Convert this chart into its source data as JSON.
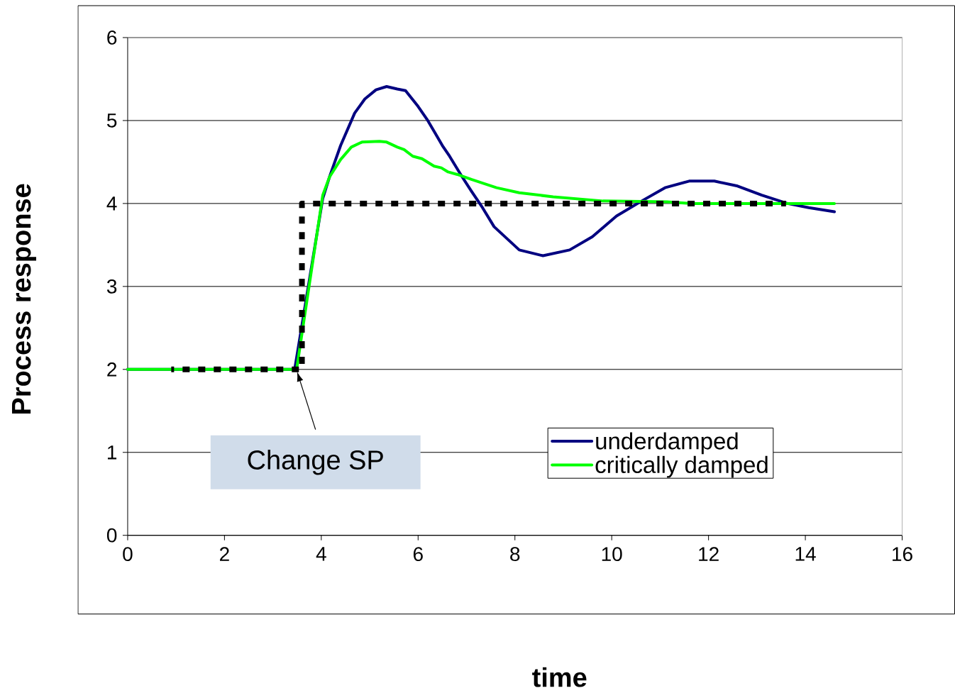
{
  "chart_data": {
    "type": "line",
    "xlabel": "time",
    "ylabel": "Process response",
    "xlim": [
      0,
      16
    ],
    "ylim": [
      0,
      6
    ],
    "xticks": [
      0,
      2,
      4,
      6,
      8,
      10,
      12,
      14,
      16
    ],
    "yticks": [
      0,
      1,
      2,
      3,
      4,
      5,
      6
    ],
    "grid": "y",
    "legend": "bottom right",
    "line_style": "solid",
    "annotations": [
      {
        "text": "Change SP",
        "x": 3.5,
        "y": 2
      }
    ],
    "series": [
      {
        "name": "underdamped",
        "color": "#000080",
        "x": [
          0,
          3.45,
          4.03,
          4.17,
          4.4,
          4.69,
          4.9,
          5.13,
          5.35,
          5.57,
          5.74,
          6.0,
          6.2,
          6.37,
          6.5,
          6.65,
          6.9,
          7.1,
          7.33,
          7.57,
          8.09,
          8.58,
          9.13,
          9.6,
          10.1,
          10.62,
          11.1,
          11.6,
          12.12,
          12.6,
          13.1,
          13.63,
          14.07,
          14.6
        ],
        "values": [
          2,
          2,
          4.06,
          4.32,
          4.7,
          5.09,
          5.26,
          5.37,
          5.41,
          5.38,
          5.36,
          5.17,
          5.0,
          4.83,
          4.7,
          4.57,
          4.33,
          4.15,
          3.95,
          3.72,
          3.44,
          3.37,
          3.44,
          3.6,
          3.85,
          4.03,
          4.19,
          4.27,
          4.27,
          4.21,
          4.1,
          4.0,
          3.95,
          3.9
        ]
      },
      {
        "name": "critically damped",
        "color": "#00ff00",
        "x": [
          0,
          3.49,
          4.03,
          4.17,
          4.4,
          4.62,
          4.84,
          5.2,
          5.35,
          5.57,
          5.71,
          5.89,
          6.08,
          6.33,
          6.48,
          6.62,
          6.81,
          7.1,
          7.62,
          8.09,
          8.79,
          9.82,
          11.14,
          11.65,
          14.6
        ],
        "values": [
          2,
          2,
          4.1,
          4.32,
          4.53,
          4.68,
          4.74,
          4.75,
          4.74,
          4.68,
          4.65,
          4.57,
          4.54,
          4.45,
          4.43,
          4.38,
          4.35,
          4.29,
          4.19,
          4.13,
          4.08,
          4.03,
          4.02,
          4.0,
          4.0
        ]
      },
      {
        "color": "#000000",
        "line_style": "dotted",
        "x": [
          0.9,
          3.6,
          3.6,
          13.6
        ],
        "values": [
          2,
          2,
          4,
          4
        ]
      }
    ]
  }
}
